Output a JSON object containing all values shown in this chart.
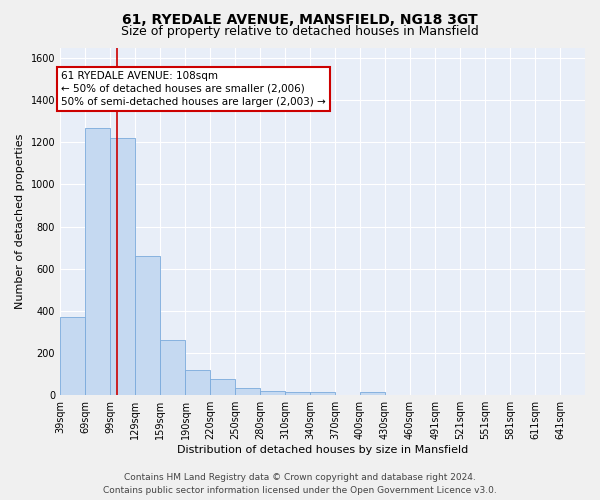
{
  "title": "61, RYEDALE AVENUE, MANSFIELD, NG18 3GT",
  "subtitle": "Size of property relative to detached houses in Mansfield",
  "xlabel": "Distribution of detached houses by size in Mansfield",
  "ylabel": "Number of detached properties",
  "bin_labels": [
    "39sqm",
    "69sqm",
    "99sqm",
    "129sqm",
    "159sqm",
    "190sqm",
    "220sqm",
    "250sqm",
    "280sqm",
    "310sqm",
    "340sqm",
    "370sqm",
    "400sqm",
    "430sqm",
    "460sqm",
    "491sqm",
    "521sqm",
    "551sqm",
    "581sqm",
    "611sqm",
    "641sqm"
  ],
  "bin_edges": [
    39,
    69,
    99,
    129,
    159,
    190,
    220,
    250,
    280,
    310,
    340,
    370,
    400,
    430,
    460,
    491,
    521,
    551,
    581,
    611,
    641,
    671
  ],
  "bar_heights": [
    370,
    1270,
    1220,
    660,
    260,
    120,
    75,
    35,
    20,
    15,
    15,
    0,
    15,
    0,
    0,
    0,
    0,
    0,
    0,
    0,
    0
  ],
  "bar_color": "#c5d9f1",
  "bar_edge_color": "#7aaadc",
  "redline_x": 108,
  "annotation_title": "61 RYEDALE AVENUE: 108sqm",
  "annotation_line1": "← 50% of detached houses are smaller (2,006)",
  "annotation_line2": "50% of semi-detached houses are larger (2,003) →",
  "annotation_box_color": "#ffffff",
  "annotation_box_edge": "#cc0000",
  "redline_color": "#cc0000",
  "ylim": [
    0,
    1650
  ],
  "yticks": [
    0,
    200,
    400,
    600,
    800,
    1000,
    1200,
    1400,
    1600
  ],
  "bg_color": "#e8eef8",
  "grid_color": "#ffffff",
  "footer_line1": "Contains HM Land Registry data © Crown copyright and database right 2024.",
  "footer_line2": "Contains public sector information licensed under the Open Government Licence v3.0.",
  "title_fontsize": 10,
  "subtitle_fontsize": 9,
  "axis_label_fontsize": 8,
  "tick_fontsize": 7,
  "annotation_fontsize": 7.5,
  "footer_fontsize": 6.5
}
